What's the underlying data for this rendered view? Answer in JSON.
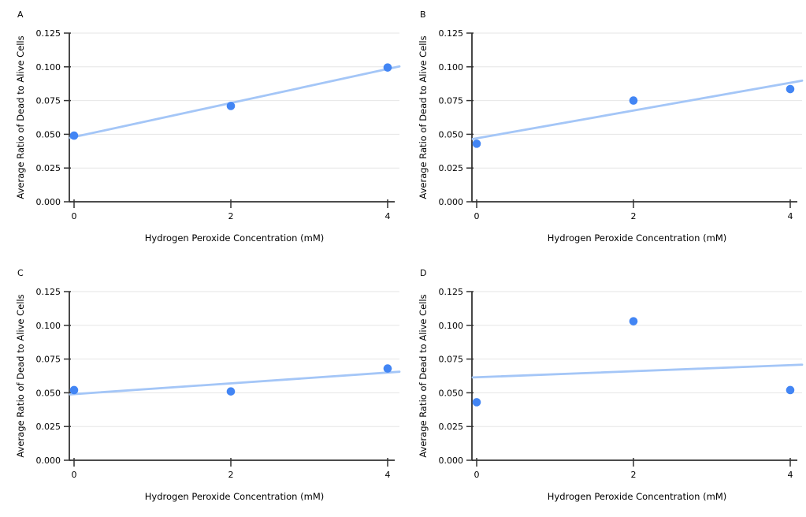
{
  "style": {
    "background": "#FFFFFF",
    "point_color": "#4285F4",
    "trend_color": "#A4C6F7",
    "axis_color": "#333333",
    "grid_color": "#E6E6E6",
    "text_color": "#000000"
  },
  "chart_data": [
    {
      "type": "scatter",
      "panel_label": "A",
      "title": "",
      "xlabel": "Hydrogen Peroxide Concentration (mM)",
      "ylabel": "Average Ratio of Dead to Alive Cells",
      "x": [
        0,
        2,
        4
      ],
      "y": [
        0.049,
        0.071,
        0.0995
      ],
      "trendline": {
        "type": "linear",
        "intercept": 0.048,
        "slope": 0.0126
      },
      "xticks": [
        0,
        2,
        4
      ],
      "yticks": [
        0,
        0.025,
        0.05,
        0.075,
        0.1,
        0.125
      ],
      "ytick_labels": [
        "0.000",
        "0.025",
        "0.050",
        "0.075",
        "0.100",
        "0.125"
      ],
      "xlim": [
        0,
        4.15
      ],
      "ylim": [
        0,
        0.125
      ],
      "grid": true,
      "legend": false
    },
    {
      "type": "scatter",
      "panel_label": "B",
      "title": "",
      "xlabel": "Hydrogen Peroxide Concentration (mM)",
      "ylabel": "Average Ratio of Dead to Alive Cells",
      "x": [
        0,
        2,
        4
      ],
      "y": [
        0.043,
        0.075,
        0.0835
      ],
      "trendline": {
        "type": "linear",
        "intercept": 0.047,
        "slope": 0.0103
      },
      "xticks": [
        0,
        2,
        4
      ],
      "yticks": [
        0,
        0.025,
        0.05,
        0.075,
        0.1,
        0.125
      ],
      "ytick_labels": [
        "0.000",
        "0.025",
        "0.050",
        "0.075",
        "0.100",
        "0.125"
      ],
      "xlim": [
        0,
        4.15
      ],
      "ylim": [
        0,
        0.125
      ],
      "grid": true,
      "legend": false
    },
    {
      "type": "scatter",
      "panel_label": "C",
      "title": "",
      "xlabel": "Hydrogen Peroxide Concentration (mM)",
      "ylabel": "Average Ratio of Dead to Alive Cells",
      "x": [
        0,
        2,
        4
      ],
      "y": [
        0.052,
        0.051,
        0.068
      ],
      "trendline": {
        "type": "linear",
        "intercept": 0.049,
        "slope": 0.004
      },
      "xticks": [
        0,
        2,
        4
      ],
      "yticks": [
        0,
        0.025,
        0.05,
        0.075,
        0.1,
        0.125
      ],
      "ytick_labels": [
        "0.000",
        "0.025",
        "0.050",
        "0.075",
        "0.100",
        "0.125"
      ],
      "xlim": [
        0,
        4.15
      ],
      "ylim": [
        0,
        0.125
      ],
      "grid": true,
      "legend": false
    },
    {
      "type": "scatter",
      "panel_label": "D",
      "title": "",
      "xlabel": "Hydrogen Peroxide Concentration (mM)",
      "ylabel": "Average Ratio of Dead to Alive Cells",
      "x": [
        0,
        2,
        4
      ],
      "y": [
        0.043,
        0.103,
        0.052
      ],
      "trendline": {
        "type": "linear",
        "intercept": 0.0615,
        "slope": 0.00225
      },
      "xticks": [
        0,
        2,
        4
      ],
      "yticks": [
        0,
        0.025,
        0.05,
        0.075,
        0.1,
        0.125
      ],
      "ytick_labels": [
        "0.000",
        "0.025",
        "0.050",
        "0.075",
        "0.100",
        "0.125"
      ],
      "xlim": [
        0,
        4.15
      ],
      "ylim": [
        0,
        0.125
      ],
      "grid": true,
      "legend": false
    }
  ]
}
